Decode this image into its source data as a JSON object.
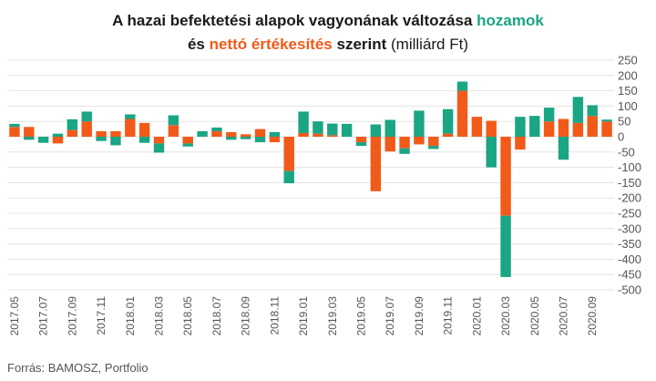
{
  "title": {
    "part1": "A hazai befektetési alapok vagyonának változása",
    "highlight1": "hozamok",
    "part2": "és",
    "highlight2": "nettó értékesítés",
    "part3": "szerint",
    "unit": "(milliárd Ft)"
  },
  "source": "Forrás: BAMOSZ, Portfolio",
  "colors": {
    "hozamok": "#1aa584",
    "netto": "#f25a1a",
    "grid": "#e3e3e3"
  },
  "chart_data": {
    "type": "bar",
    "stacked": true,
    "ylim": [
      -500,
      250
    ],
    "yticks": [
      250,
      200,
      150,
      100,
      50,
      0,
      -50,
      -100,
      -150,
      -200,
      -250,
      -300,
      -350,
      -400,
      -450,
      -500
    ],
    "grid": true,
    "legend": "none",
    "categories": [
      "2017.05",
      "2017.06",
      "2017.07",
      "2017.08",
      "2017.09",
      "2017.10",
      "2017.11",
      "2017.12",
      "2018.01",
      "2018.02",
      "2018.03",
      "2018.04",
      "2018.05",
      "2018.06",
      "2018.07",
      "2018.08",
      "2018.09",
      "2018.10",
      "2018.11",
      "2018.12",
      "2019.01",
      "2019.02",
      "2019.03",
      "2019.04",
      "2019.05",
      "2019.06",
      "2019.07",
      "2019.08",
      "2019.09",
      "2019.10",
      "2019.11",
      "2019.12",
      "2020.01",
      "2020.02",
      "2020.03",
      "2020.04",
      "2020.05",
      "2020.06",
      "2020.07",
      "2020.08",
      "2020.09",
      "2020.10"
    ],
    "xtick_labels": [
      "2017.05",
      "2017.07",
      "2017.09",
      "2017.11",
      "2018.01",
      "2018.03",
      "2018.05",
      "2018.07",
      "2018.09",
      "2018.11",
      "2019.01",
      "2019.03",
      "2019.05",
      "2019.07",
      "2019.09",
      "2019.11",
      "2020.01",
      "2020.03",
      "2020.05",
      "2020.07",
      "2020.09"
    ],
    "series": [
      {
        "key": "netto",
        "values": [
          32,
          32,
          0,
          -22,
          22,
          50,
          18,
          18,
          58,
          45,
          -22,
          38,
          -22,
          0,
          18,
          15,
          8,
          25,
          -18,
          -112,
          12,
          10,
          5,
          0,
          -18,
          -178,
          -48,
          -38,
          -25,
          -30,
          10,
          150,
          65,
          52,
          -258,
          -42,
          0,
          50,
          58,
          45,
          68,
          50
        ]
      },
      {
        "key": "hozamok",
        "values": [
          10,
          -10,
          -20,
          10,
          35,
          32,
          -14,
          -28,
          15,
          -20,
          -30,
          32,
          -10,
          18,
          12,
          -10,
          -8,
          -18,
          15,
          -40,
          70,
          40,
          38,
          42,
          -12,
          40,
          55,
          -18,
          85,
          -10,
          80,
          30,
          0,
          -100,
          -200,
          65,
          68,
          45,
          -75,
          85,
          35,
          6
        ]
      }
    ]
  }
}
